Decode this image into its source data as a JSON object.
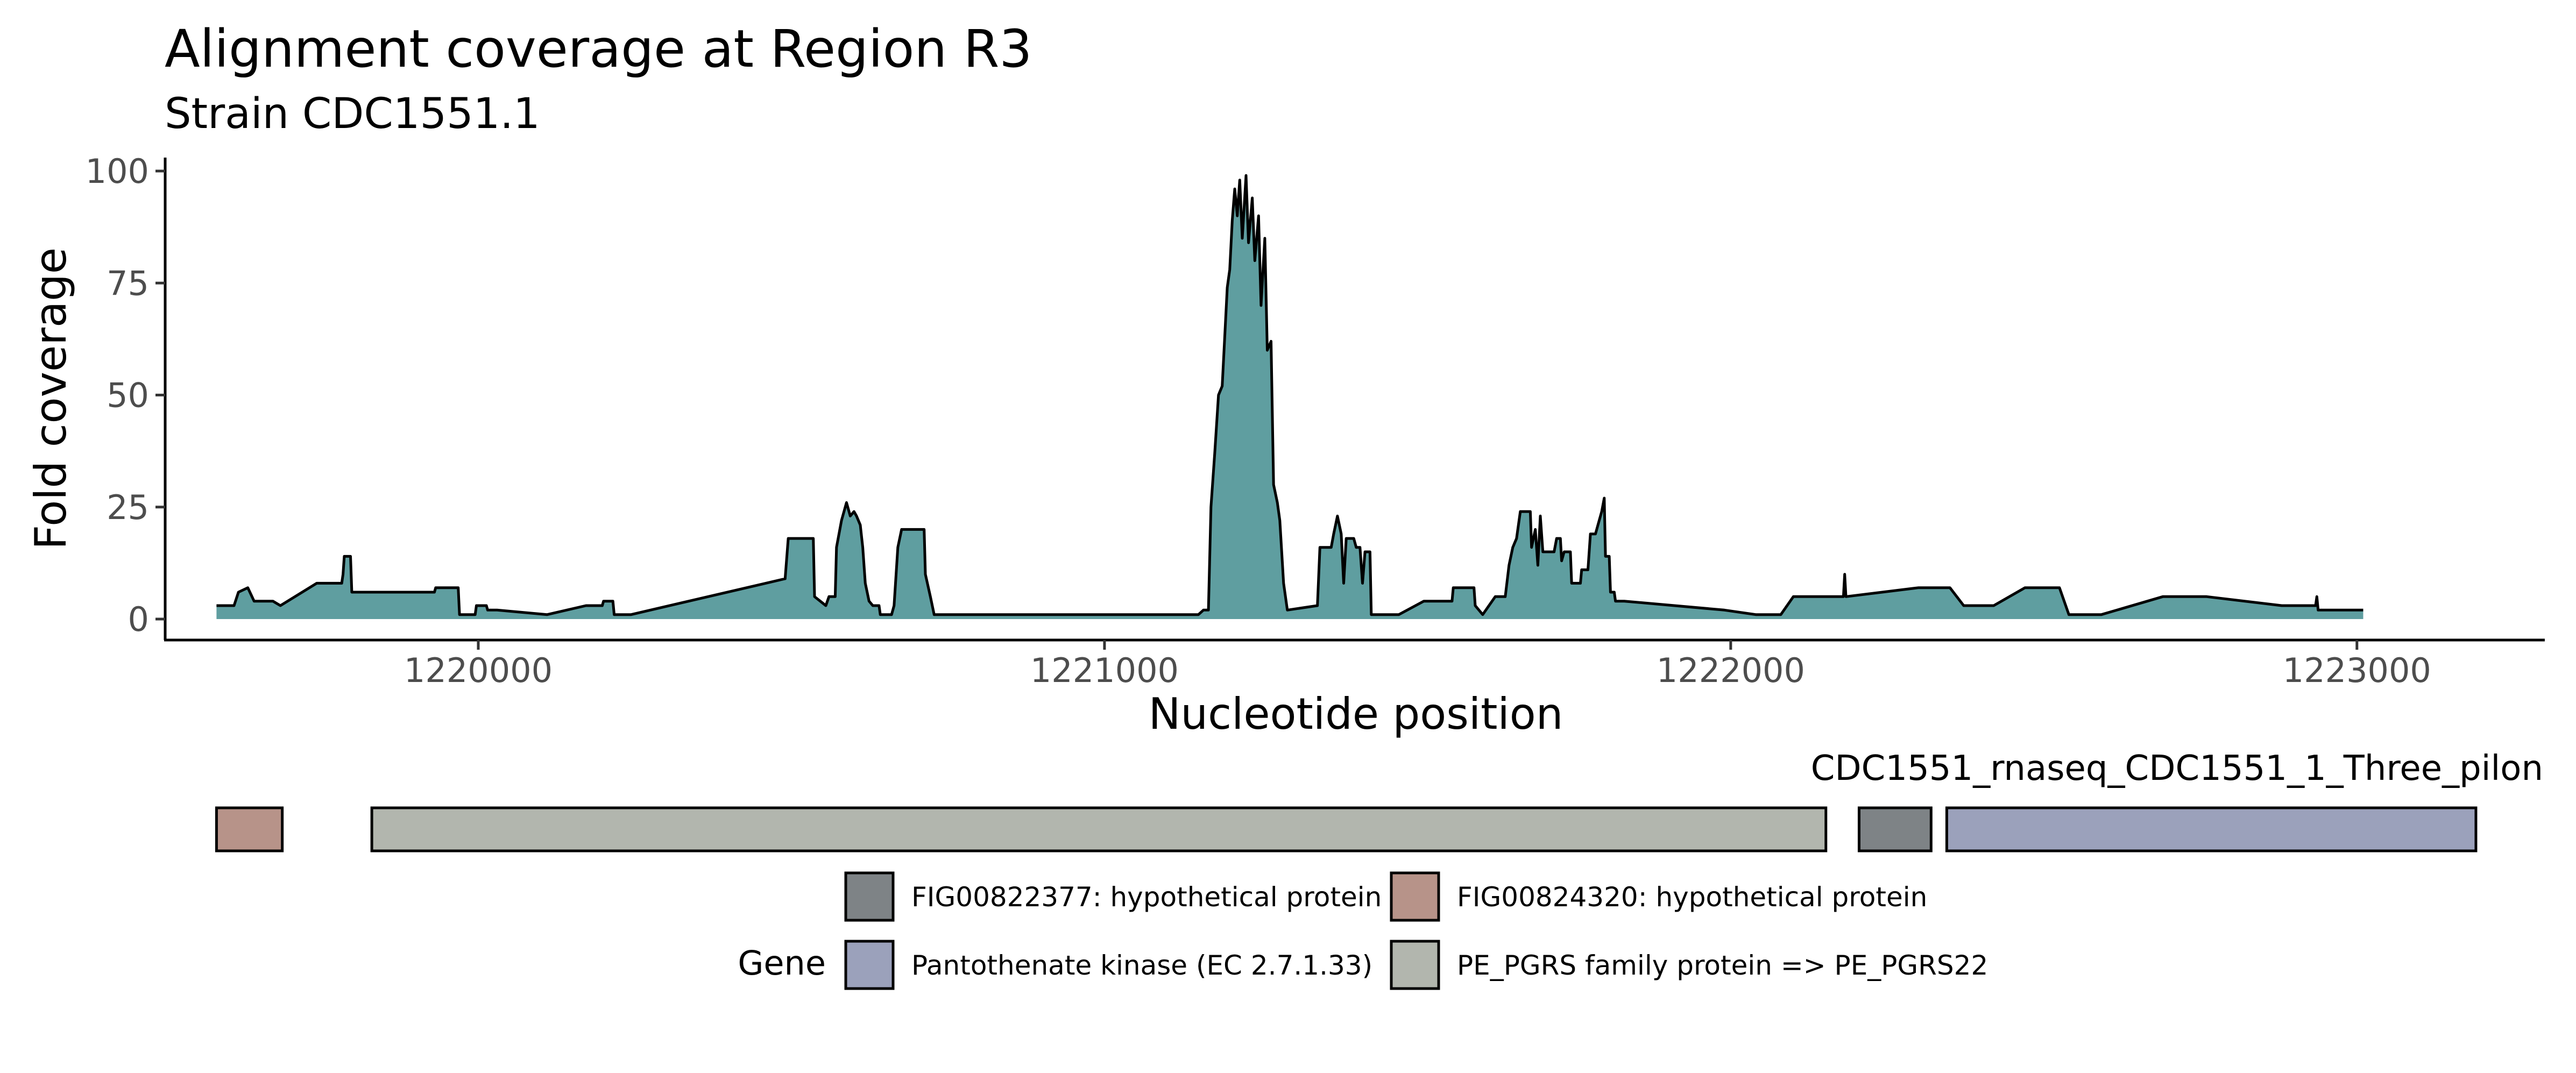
{
  "chart_data": [
    {
      "type": "area",
      "title": "Alignment coverage at Region R3",
      "subtitle": "Strain CDC1551.1",
      "xlabel": "Nucleotide position",
      "ylabel": "Fold coverage",
      "xlim": [
        1219500,
        1223300
      ],
      "ylim": [
        0,
        100
      ],
      "x_ticks": [
        1220000,
        1221000,
        1222000,
        1223000
      ],
      "y_ticks": [
        0,
        25,
        50,
        75,
        100
      ],
      "fill_color": "#5f9ea0",
      "line_color": "#000000",
      "grid": false,
      "series": [
        {
          "points": [
            [
              1219582,
              3
            ],
            [
              1219610,
              3
            ],
            [
              1219617,
              6
            ],
            [
              1219632,
              7
            ],
            [
              1219642,
              4
            ],
            [
              1219660,
              4
            ],
            [
              1219672,
              4
            ],
            [
              1219684,
              3
            ],
            [
              1219742,
              8
            ],
            [
              1219782,
              8
            ],
            [
              1219784,
              10
            ],
            [
              1219786,
              14
            ],
            [
              1219796,
              14
            ],
            [
              1219798,
              6
            ],
            [
              1219900,
              6
            ],
            [
              1219930,
              6
            ],
            [
              1219932,
              7
            ],
            [
              1219968,
              7
            ],
            [
              1219970,
              1
            ],
            [
              1219995,
              1
            ],
            [
              1219997,
              3
            ],
            [
              1220013,
              3
            ],
            [
              1220015,
              2
            ],
            [
              1220030,
              2
            ],
            [
              1220110,
              1
            ],
            [
              1220172,
              3
            ],
            [
              1220198,
              3
            ],
            [
              1220200,
              4
            ],
            [
              1220215,
              4
            ],
            [
              1220217,
              1
            ],
            [
              1220244,
              1
            ],
            [
              1220490,
              9
            ],
            [
              1220495,
              18
            ],
            [
              1220535,
              18
            ],
            [
              1220537,
              5
            ],
            [
              1220555,
              3
            ],
            [
              1220560,
              5
            ],
            [
              1220570,
              5
            ],
            [
              1220572,
              16
            ],
            [
              1220580,
              22
            ],
            [
              1220588,
              26
            ],
            [
              1220594,
              23
            ],
            [
              1220600,
              24
            ],
            [
              1220604,
              23
            ],
            [
              1220610,
              21
            ],
            [
              1220614,
              16
            ],
            [
              1220618,
              8
            ],
            [
              1220624,
              4
            ],
            [
              1220630,
              3
            ],
            [
              1220640,
              3
            ],
            [
              1220642,
              1
            ],
            [
              1220660,
              1
            ],
            [
              1220664,
              3
            ],
            [
              1220670,
              16
            ],
            [
              1220676,
              20
            ],
            [
              1220712,
              20
            ],
            [
              1220714,
              10
            ],
            [
              1220722,
              5
            ],
            [
              1220728,
              1
            ],
            [
              1220850,
              1
            ],
            [
              1221150,
              1
            ],
            [
              1221158,
              2
            ],
            [
              1221166,
              2
            ],
            [
              1221170,
              25
            ],
            [
              1221176,
              37
            ],
            [
              1221182,
              50
            ],
            [
              1221188,
              52
            ],
            [
              1221196,
              74
            ],
            [
              1221200,
              78
            ],
            [
              1221204,
              89
            ],
            [
              1221208,
              96
            ],
            [
              1221212,
              90
            ],
            [
              1221216,
              98
            ],
            [
              1221220,
              85
            ],
            [
              1221226,
              99
            ],
            [
              1221230,
              84
            ],
            [
              1221236,
              94
            ],
            [
              1221240,
              80
            ],
            [
              1221246,
              90
            ],
            [
              1221250,
              70
            ],
            [
              1221256,
              85
            ],
            [
              1221260,
              60
            ],
            [
              1221266,
              62
            ],
            [
              1221270,
              30
            ],
            [
              1221276,
              26
            ],
            [
              1221280,
              22
            ],
            [
              1221286,
              8
            ],
            [
              1221292,
              2
            ],
            [
              1221340,
              3
            ],
            [
              1221344,
              16
            ],
            [
              1221362,
              16
            ],
            [
              1221366,
              19
            ],
            [
              1221372,
              23
            ],
            [
              1221378,
              19
            ],
            [
              1221382,
              8
            ],
            [
              1221386,
              18
            ],
            [
              1221398,
              18
            ],
            [
              1221402,
              16
            ],
            [
              1221408,
              16
            ],
            [
              1221412,
              8
            ],
            [
              1221416,
              15
            ],
            [
              1221424,
              15
            ],
            [
              1221426,
              1
            ],
            [
              1221470,
              1
            ],
            [
              1221510,
              4
            ],
            [
              1221555,
              4
            ],
            [
              1221557,
              7
            ],
            [
              1221590,
              7
            ],
            [
              1221592,
              3
            ],
            [
              1221604,
              1
            ],
            [
              1221624,
              5
            ],
            [
              1221640,
              5
            ],
            [
              1221646,
              12
            ],
            [
              1221652,
              16
            ],
            [
              1221658,
              18
            ],
            [
              1221664,
              24
            ],
            [
              1221680,
              24
            ],
            [
              1221682,
              16
            ],
            [
              1221688,
              20
            ],
            [
              1221692,
              12
            ],
            [
              1221696,
              23
            ],
            [
              1221700,
              15
            ],
            [
              1221718,
              15
            ],
            [
              1221722,
              18
            ],
            [
              1221728,
              18
            ],
            [
              1221730,
              13
            ],
            [
              1221734,
              15
            ],
            [
              1221744,
              15
            ],
            [
              1221746,
              8
            ],
            [
              1221760,
              8
            ],
            [
              1221762,
              11
            ],
            [
              1221772,
              11
            ],
            [
              1221776,
              19
            ],
            [
              1221784,
              19
            ],
            [
              1221788,
              21
            ],
            [
              1221794,
              24
            ],
            [
              1221798,
              27
            ],
            [
              1221800,
              14
            ],
            [
              1221806,
              14
            ],
            [
              1221808,
              6
            ],
            [
              1221814,
              6
            ],
            [
              1221816,
              4
            ],
            [
              1221830,
              4
            ],
            [
              1221990,
              2
            ],
            [
              1222040,
              1
            ],
            [
              1222080,
              1
            ],
            [
              1222100,
              5
            ],
            [
              1222180,
              5
            ],
            [
              1222182,
              10
            ],
            [
              1222184,
              5
            ],
            [
              1222300,
              7
            ],
            [
              1222350,
              7
            ],
            [
              1222372,
              3
            ],
            [
              1222420,
              3
            ],
            [
              1222470,
              7
            ],
            [
              1222525,
              7
            ],
            [
              1222540,
              1
            ],
            [
              1222592,
              1
            ],
            [
              1222690,
              5
            ],
            [
              1222760,
              5
            ],
            [
              1222880,
              3
            ],
            [
              1222934,
              3
            ],
            [
              1222936,
              5
            ],
            [
              1222938,
              2
            ],
            [
              1223010,
              2
            ]
          ]
        }
      ]
    },
    {
      "type": "gene-track",
      "track_label": "CDC1551_rnaseq_CDC1551_1_Three_pilon",
      "legend_title": "Gene",
      "legend_placement": "bottom",
      "genes": [
        {
          "name": "FIG00824320: hypothetical protein",
          "start": 1219582,
          "end": 1219687,
          "color": "#b79389"
        },
        {
          "name": "PE_PGRS family protein => PE_PGRS22",
          "start": 1219830,
          "end": 1222152,
          "color": "#b2b6ae"
        },
        {
          "name": "FIG00822377: hypothetical protein",
          "start": 1222205,
          "end": 1222320,
          "color": "#7e8386"
        },
        {
          "name": "Pantothenate kinase (EC 2.7.1.33)",
          "start": 1222345,
          "end": 1223190,
          "color": "#9ba1bb"
        }
      ],
      "legend_items": [
        {
          "label": "FIG00822377: hypothetical protein",
          "color": "#7e8386"
        },
        {
          "label": "FIG00824320: hypothetical protein",
          "color": "#b79389"
        },
        {
          "label": "Pantothenate kinase (EC 2.7.1.33)",
          "color": "#9ba1bb"
        },
        {
          "label": "PE_PGRS family protein => PE_PGRS22",
          "color": "#b2b6ae"
        }
      ]
    }
  ]
}
